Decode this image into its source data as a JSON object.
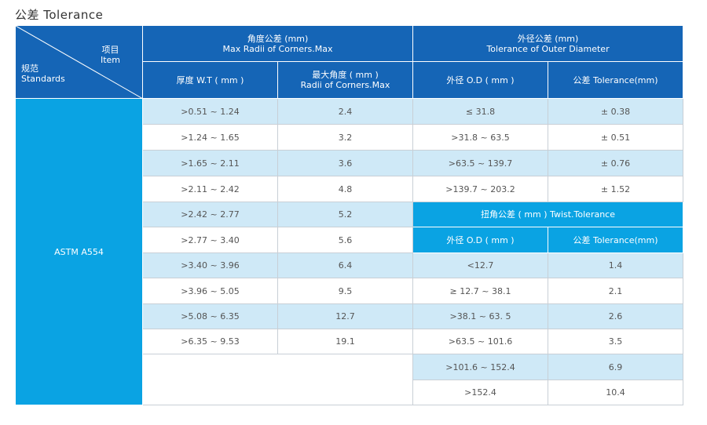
{
  "title": "公差 Tolerance",
  "header": {
    "corner_item_cn": "项目",
    "corner_item_en": "Item",
    "corner_std_cn": "规范",
    "corner_std_en": "Standards",
    "corner_group_cn": "角度公差 (mm)",
    "corner_group_en": "Max Radii of Corners.Max",
    "outer_group_cn": "外径公差 (mm)",
    "outer_group_en": "Tolerance of Outer Diameter",
    "col_wt": "厚度 W.T ( mm )",
    "col_radii_cn": "最大角度 ( mm )",
    "col_radii_en": "Radii of Corners.Max",
    "col_od": "外径 O.D ( mm )",
    "col_tol": "公差 Tolerance(mm)"
  },
  "standard": "ASTM A554",
  "thickness_rows": [
    {
      "wt": ">0.51 ~ 1.24",
      "radii": "2.4"
    },
    {
      "wt": ">1.24 ~ 1.65",
      "radii": "3.2"
    },
    {
      "wt": ">1.65 ~ 2.11",
      "radii": "3.6"
    },
    {
      "wt": ">2.11 ~ 2.42",
      "radii": "4.8"
    },
    {
      "wt": ">2.42 ~ 2.77",
      "radii": "5.2"
    },
    {
      "wt": ">2.77 ~ 3.40",
      "radii": "5.6"
    },
    {
      "wt": ">3.40 ~ 3.96",
      "radii": "6.4"
    },
    {
      "wt": ">3.96 ~ 5.05",
      "radii": "9.5"
    },
    {
      "wt": ">5.08 ~ 6.35",
      "radii": "12.7"
    },
    {
      "wt": ">6.35 ~ 9.53",
      "radii": "19.1"
    }
  ],
  "outer_rows": [
    {
      "od": "≤ 31.8",
      "tol": "± 0.38"
    },
    {
      "od": ">31.8 ~ 63.5",
      "tol": "± 0.51"
    },
    {
      "od": ">63.5 ~ 139.7",
      "tol": "± 0.76"
    },
    {
      "od": ">139.7 ~ 203.2",
      "tol": "± 1.52"
    }
  ],
  "twist": {
    "title": "扭角公差 ( mm ) Twist.Tolerance",
    "col_od": "外径 O.D ( mm )",
    "col_tol": "公差 Tolerance(mm)",
    "rows": [
      {
        "od": "<12.7",
        "tol": "1.4"
      },
      {
        "od": "≥ 12.7 ~ 38.1",
        "tol": "2.1"
      },
      {
        "od": ">38.1 ~ 63.  5",
        "tol": "2.6"
      },
      {
        "od": ">63.5 ~ 101.6",
        "tol": "3.5"
      },
      {
        "od": ">101.6 ~ 152.4",
        "tol": "6.9"
      },
      {
        "od": ">152.4",
        "tol": "10.4"
      }
    ]
  },
  "colors": {
    "header_blue": "#1565b6",
    "cyan": "#0aa3e3",
    "light_blue": "#cfe9f7"
  }
}
